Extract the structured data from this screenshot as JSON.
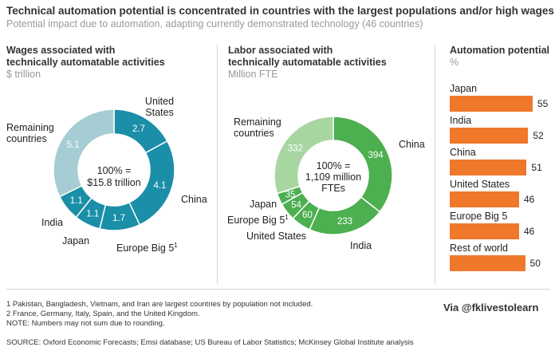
{
  "header": {
    "title": "Technical automation potential is concentrated in countries with the largest populations and/or high wages",
    "subtitle": "Potential impact due to automation, adapting currently demonstrated technology (46 countries)"
  },
  "colors": {
    "wages": "#1b8ea8",
    "wages_remaining": "#a5cdd3",
    "labor": "#4caf50",
    "labor_remaining": "#a7d6a1",
    "bars": "#f0782a",
    "separator": "#ffffff"
  },
  "panels": {
    "wages": {
      "title_line1": "Wages associated with",
      "title_line2": "technically automatable activities",
      "unit": "$ trillion"
    },
    "labor": {
      "title_line1": "Labor associated with",
      "title_line2": "technically automatable activities",
      "unit": "Million FTE"
    },
    "automation": {
      "title": "Automation potential",
      "unit": "%"
    }
  },
  "chart_data": [
    {
      "type": "pie",
      "title": "Wages associated with technically automatable activities",
      "unit": "$ trillion",
      "center_label_line1": "100% =",
      "center_label_line2": "$15.8 trillion",
      "slices": [
        {
          "label": "United States",
          "value": 2.7,
          "value_label": "2.7"
        },
        {
          "label": "China",
          "value": 4.1,
          "value_label": "4.1"
        },
        {
          "label": "Europe Big 5",
          "value": 1.7,
          "value_label": "1.7"
        },
        {
          "label": "Japan",
          "value": 1.1,
          "value_label": "1.1"
        },
        {
          "label": "India",
          "value": 1.1,
          "value_label": "1.1"
        },
        {
          "label": "Remaining countries",
          "value": 5.1,
          "value_label": "5.1"
        }
      ],
      "footnote_marks": {
        "Europe Big 5": "1"
      }
    },
    {
      "type": "pie",
      "title": "Labor associated with technically automatable activities",
      "unit": "Million FTE",
      "center_label_line1": "100% =",
      "center_label_line2": "1,109 million",
      "center_label_line3": "FTEs",
      "slices": [
        {
          "label": "China",
          "value": 394,
          "value_label": "394"
        },
        {
          "label": "India",
          "value": 233,
          "value_label": "233"
        },
        {
          "label": "United States",
          "value": 60,
          "value_label": "60"
        },
        {
          "label": "Europe Big 5",
          "value": 54,
          "value_label": "54"
        },
        {
          "label": "Japan",
          "value": 35,
          "value_label": "35"
        },
        {
          "label": "Remaining countries",
          "value": 332,
          "value_label": "332"
        }
      ],
      "footnote_marks": {
        "Europe Big 5": "1"
      }
    },
    {
      "type": "bar",
      "orientation": "horizontal",
      "title": "Automation potential",
      "unit": "%",
      "categories": [
        "Japan",
        "India",
        "China",
        "United States",
        "Europe Big 5",
        "Rest of world"
      ],
      "values": [
        55,
        52,
        51,
        46,
        46,
        50
      ]
    }
  ],
  "footnotes": {
    "note1": "1  Pakistan, Bangladesh, Vietnam, and Iran are largest countries by population not included.",
    "note2": "2  France, Germany, Italy, Spain, and the United Kingdom.",
    "note3": "NOTE: Numbers may not sum due to rounding.",
    "source": "SOURCE:  Oxford Economic Forecasts; Emsi database; US Bureau of Labor Statistics; McKinsey Global Institute analysis"
  },
  "via": "Via @fklivestolearn"
}
